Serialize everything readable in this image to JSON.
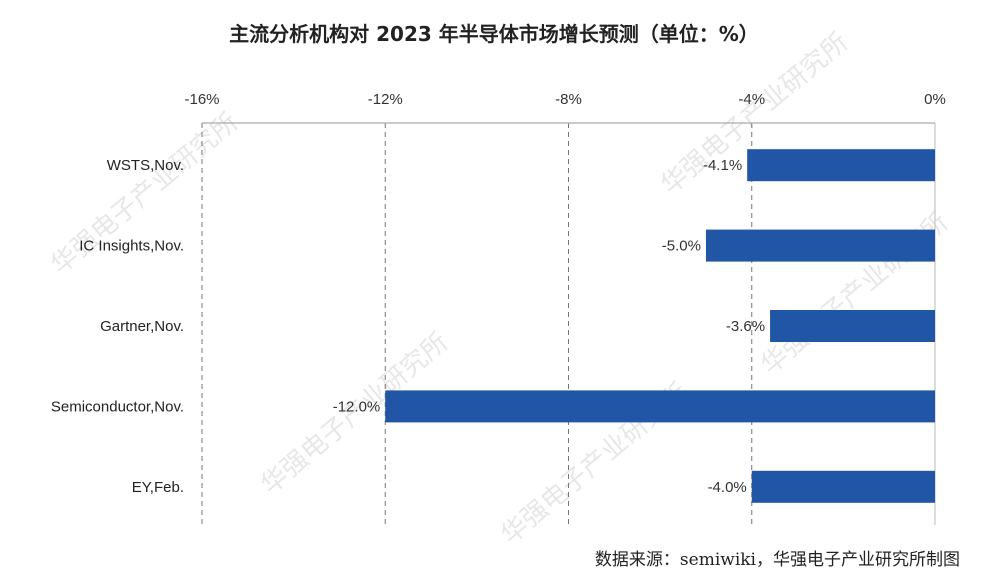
{
  "chart_data": {
    "type": "bar",
    "orientation": "horizontal",
    "title": "主流分析机构对 2023 年半导体市场增长预测（单位：%）",
    "categories": [
      "WSTS,Nov.",
      "IC Insights,Nov.",
      "Gartner,Nov.",
      "Semiconductor,Nov.",
      "EY,Feb."
    ],
    "values": [
      -4.1,
      -5.0,
      -3.6,
      -12.0,
      -4.0
    ],
    "data_labels": [
      "-4.1%",
      "-5.0%",
      "-3.6%",
      "-12.0%",
      "-4.0%"
    ],
    "xlim": [
      -16,
      0
    ],
    "x_ticks": [
      -16,
      -12,
      -8,
      -4,
      0
    ],
    "x_tick_labels": [
      "-16%",
      "-12%",
      "-8%",
      "-4%",
      "0%"
    ],
    "x_axis_position": "top",
    "grid": "vertical dashed",
    "legend": "none",
    "bar_color": "#2155A6"
  },
  "source": "数据来源：semiwiki，华强电子产业研究所制图",
  "watermark": "华强电子产业研究所"
}
